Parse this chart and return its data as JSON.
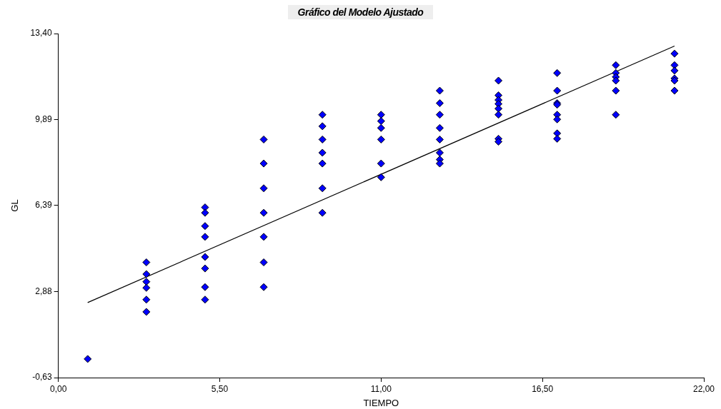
{
  "chart_data": {
    "type": "scatter",
    "title": "Gráfico del Modelo Ajustado",
    "xlabel": "TIEMPO",
    "ylabel": "GL",
    "grid": false,
    "legend": false,
    "xlim": [
      0,
      22
    ],
    "xticks": [
      {
        "value": 0,
        "label": "0,00"
      },
      {
        "value": 5.5,
        "label": "5,50"
      },
      {
        "value": 11,
        "label": "11,00"
      },
      {
        "value": 16.5,
        "label": "16,50"
      },
      {
        "value": 22,
        "label": "22,00"
      }
    ],
    "ylim": [
      -0.63,
      13.4
    ],
    "yticks": [
      {
        "value": -0.63,
        "label": "-0,63"
      },
      {
        "value": 2.88,
        "label": "2,88"
      },
      {
        "value": 6.39,
        "label": "6,39"
      },
      {
        "value": 9.89,
        "label": "9,89"
      },
      {
        "value": 13.4,
        "label": "13,40"
      }
    ],
    "series": [
      {
        "marker": "diamond",
        "color": "#0000ff",
        "x": [
          1,
          3,
          3,
          3,
          3,
          3,
          3,
          5,
          5,
          5,
          5,
          5,
          5,
          5,
          5,
          7,
          7,
          7,
          7,
          7,
          7,
          7,
          9,
          9,
          9,
          9,
          9,
          9,
          9,
          11,
          11,
          11,
          11,
          11,
          11,
          13,
          13,
          13,
          13,
          13,
          13,
          13,
          13,
          15,
          15,
          15,
          15,
          15,
          15,
          15,
          15,
          17,
          17,
          17,
          17,
          17,
          17,
          17,
          17,
          19,
          19,
          19,
          19,
          19,
          19,
          21,
          21,
          21,
          21,
          21,
          21
        ],
        "values": [
          0.13,
          4.07,
          3.59,
          3.28,
          3.03,
          2.55,
          2.05,
          6.31,
          6.09,
          5.55,
          5.11,
          4.29,
          3.82,
          3.06,
          2.55,
          9.08,
          8.1,
          7.09,
          6.09,
          5.11,
          4.07,
          3.06,
          10.09,
          9.62,
          9.08,
          8.54,
          8.1,
          7.09,
          6.09,
          10.09,
          9.83,
          9.55,
          9.08,
          8.1,
          7.54,
          11.07,
          10.56,
          10.09,
          9.55,
          9.08,
          8.54,
          8.26,
          8.1,
          11.48,
          10.88,
          10.69,
          10.53,
          10.34,
          10.09,
          9.11,
          8.99,
          11.79,
          11.07,
          10.56,
          10.5,
          10.09,
          9.9,
          9.33,
          9.11,
          12.11,
          11.79,
          11.63,
          11.48,
          11.07,
          10.09,
          12.58,
          12.11,
          11.89,
          11.57,
          11.48,
          11.07
        ]
      },
      {
        "type": "line",
        "marker": "none",
        "color": "#000000",
        "x": [
          1,
          21
        ],
        "values": [
          2.43,
          12.89
        ]
      }
    ]
  }
}
